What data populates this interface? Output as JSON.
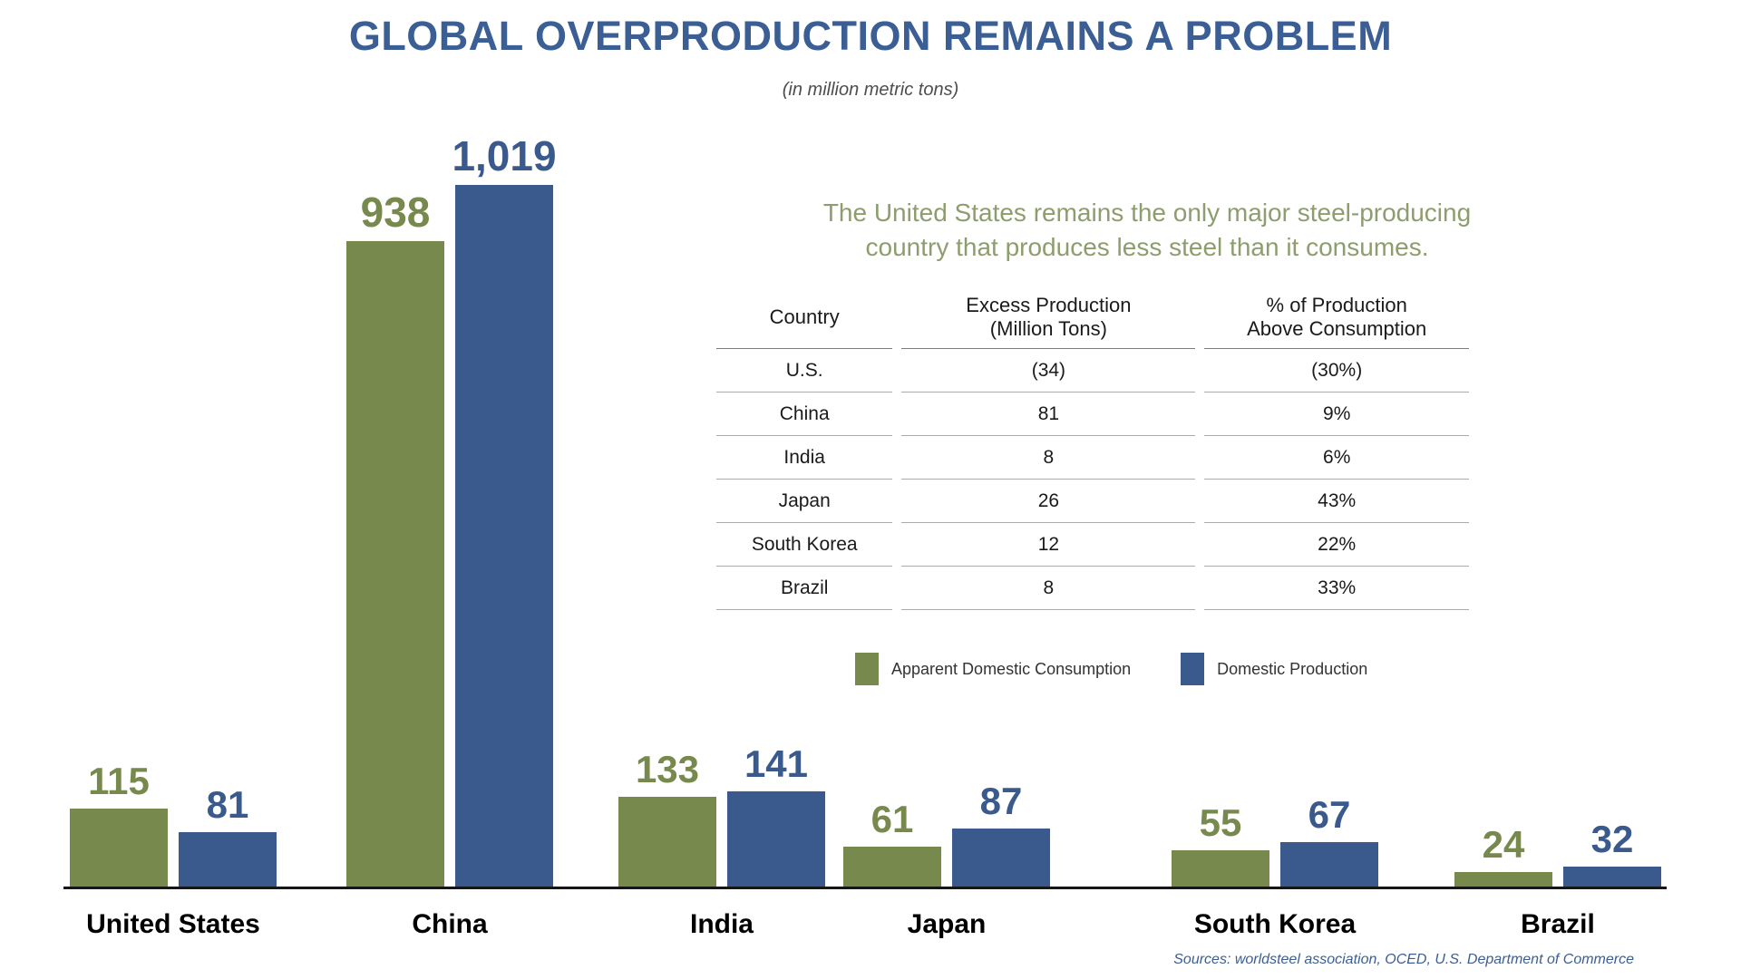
{
  "header": {
    "title": "GLOBAL OVERPRODUCTION REMAINS A PROBLEM",
    "subtitle": "(in million metric tons)"
  },
  "annotation": {
    "line1": "The United States remains the only major steel-producing",
    "line2": "country that produces less steel than it consumes."
  },
  "table": {
    "headers": [
      [
        "Country",
        ""
      ],
      [
        "Excess Production",
        "(Million Tons)"
      ],
      [
        "% of Production",
        "Above Consumption"
      ]
    ],
    "rows": [
      [
        "U.S.",
        "(34)",
        "(30%)"
      ],
      [
        "China",
        "81",
        "9%"
      ],
      [
        "India",
        "8",
        "6%"
      ],
      [
        "Japan",
        "26",
        "43%"
      ],
      [
        "South Korea",
        "12",
        "22%"
      ],
      [
        "Brazil",
        "8",
        "33%"
      ]
    ]
  },
  "chart_data": {
    "type": "bar",
    "title": "GLOBAL OVERPRODUCTION REMAINS A PROBLEM",
    "subtitle": "(in million metric tons)",
    "unit": "million metric tons",
    "categories": [
      "United States",
      "China",
      "India",
      "Japan",
      "South Korea",
      "Brazil"
    ],
    "series": [
      {
        "name": "Apparent Domestic Consumption",
        "color": "#77894c",
        "values": [
          115,
          938,
          133,
          61,
          55,
          24
        ]
      },
      {
        "name": "Domestic Production",
        "color": "#3a598c",
        "values": [
          81,
          1019,
          141,
          87,
          67,
          32
        ]
      }
    ],
    "value_labels_shown": true,
    "axes_hidden": true,
    "grid": false,
    "ylim": [
      0,
      1100
    ],
    "legend_position": "center-right"
  },
  "source": "Sources: worldsteel association, OCED, U.S. Department of Commerce",
  "colors": {
    "title_blue": "#3b5e94",
    "bar_green": "#77894c",
    "bar_blue": "#3a598c",
    "annotation_olive": "#8e9d6d",
    "subtitle_gray": "#4d4d4d",
    "axis_black": "#161616"
  }
}
